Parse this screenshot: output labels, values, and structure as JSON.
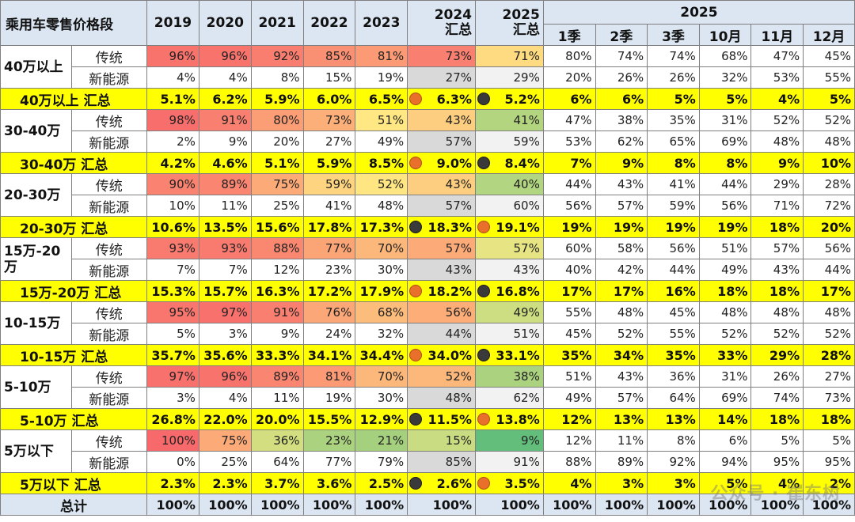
{
  "table_title": "乘用车零售价格段",
  "columns": {
    "years": [
      "2019",
      "2020",
      "2021",
      "2022",
      "2023"
    ],
    "summary": [
      {
        "year": "2024",
        "label": "汇总"
      },
      {
        "year": "2025",
        "label": "汇总"
      }
    ],
    "group_2025": "2025",
    "periods": [
      "1季",
      "2季",
      "3季",
      "10月",
      "11月",
      "12月"
    ]
  },
  "colors": {
    "header_bg": "#dce6f2",
    "summary_row_bg": "#ffff00",
    "dot_orange": "#e8702a",
    "dot_dark": "#3a3a3a",
    "col_2024_bg": "#d9d9d9",
    "col_2025_bg": "#f2f2f2"
  },
  "chart_data": {
    "type": "table",
    "segments": [
      {
        "name": "40万以上",
        "rows": [
          {
            "label": "传统",
            "values": [
              "96%",
              "96%",
              "92%",
              "85%",
              "81%",
              "73%",
              "71%",
              "80%",
              "74%",
              "74%",
              "68%",
              "47%",
              "45%"
            ]
          },
          {
            "label": "新能源",
            "values": [
              "4%",
              "4%",
              "8%",
              "15%",
              "19%",
              "27%",
              "29%",
              "20%",
              "26%",
              "26%",
              "32%",
              "53%",
              "55%"
            ]
          }
        ],
        "summary_label": "40万以上 汇总",
        "summary": [
          "5.1%",
          "6.2%",
          "5.9%",
          "6.0%",
          "6.5%",
          "6.3%",
          "5.2%",
          "6%",
          "6%",
          "5%",
          "5%",
          "4%",
          "5%"
        ],
        "dots": [
          "orange",
          "dark"
        ]
      },
      {
        "name": "30-40万",
        "rows": [
          {
            "label": "传统",
            "values": [
              "98%",
              "91%",
              "80%",
              "73%",
              "51%",
              "43%",
              "41%",
              "47%",
              "38%",
              "35%",
              "31%",
              "52%",
              "52%"
            ]
          },
          {
            "label": "新能源",
            "values": [
              "2%",
              "9%",
              "20%",
              "27%",
              "49%",
              "57%",
              "59%",
              "53%",
              "62%",
              "65%",
              "69%",
              "48%",
              "48%"
            ]
          }
        ],
        "summary_label": "30-40万 汇总",
        "summary": [
          "4.2%",
          "4.6%",
          "5.1%",
          "5.9%",
          "8.5%",
          "9.0%",
          "8.4%",
          "7%",
          "9%",
          "8%",
          "8%",
          "9%",
          "10%"
        ],
        "dots": [
          "orange",
          "dark"
        ]
      },
      {
        "name": "20-30万",
        "rows": [
          {
            "label": "传统",
            "values": [
              "90%",
              "89%",
              "75%",
              "59%",
              "52%",
              "43%",
              "40%",
              "44%",
              "43%",
              "41%",
              "44%",
              "29%",
              "28%"
            ]
          },
          {
            "label": "新能源",
            "values": [
              "10%",
              "11%",
              "25%",
              "41%",
              "48%",
              "57%",
              "60%",
              "56%",
              "57%",
              "59%",
              "56%",
              "71%",
              "72%"
            ]
          }
        ],
        "summary_label": "20-30万 汇总",
        "summary": [
          "10.6%",
          "13.5%",
          "15.6%",
          "17.8%",
          "17.3%",
          "18.3%",
          "19.1%",
          "19%",
          "19%",
          "19%",
          "19%",
          "18%",
          "20%"
        ],
        "dots": [
          "dark",
          "orange"
        ]
      },
      {
        "name": "15万-20万",
        "rows": [
          {
            "label": "传统",
            "values": [
              "93%",
              "93%",
              "88%",
              "77%",
              "70%",
              "57%",
              "57%",
              "60%",
              "58%",
              "56%",
              "51%",
              "57%",
              "56%"
            ]
          },
          {
            "label": "新能源",
            "values": [
              "7%",
              "7%",
              "12%",
              "23%",
              "30%",
              "43%",
              "43%",
              "40%",
              "42%",
              "44%",
              "49%",
              "43%",
              "44%"
            ]
          }
        ],
        "summary_label": "15万-20万 汇总",
        "summary": [
          "15.3%",
          "15.7%",
          "16.3%",
          "17.2%",
          "17.9%",
          "18.2%",
          "16.8%",
          "17%",
          "17%",
          "16%",
          "18%",
          "18%",
          "17%"
        ],
        "dots": [
          "orange",
          "dark"
        ]
      },
      {
        "name": "10-15万",
        "rows": [
          {
            "label": "传统",
            "values": [
              "95%",
              "97%",
              "91%",
              "76%",
              "68%",
              "56%",
              "49%",
              "55%",
              "48%",
              "45%",
              "48%",
              "48%",
              "48%"
            ]
          },
          {
            "label": "新能源",
            "values": [
              "5%",
              "3%",
              "9%",
              "24%",
              "32%",
              "44%",
              "51%",
              "45%",
              "52%",
              "55%",
              "52%",
              "52%",
              "52%"
            ]
          }
        ],
        "summary_label": "10-15万 汇总",
        "summary": [
          "35.7%",
          "35.6%",
          "33.3%",
          "34.1%",
          "34.4%",
          "34.0%",
          "33.1%",
          "35%",
          "34%",
          "35%",
          "33%",
          "29%",
          "28%"
        ],
        "dots": [
          "orange",
          "dark"
        ]
      },
      {
        "name": "5-10万",
        "rows": [
          {
            "label": "传统",
            "values": [
              "97%",
              "96%",
              "89%",
              "81%",
              "70%",
              "52%",
              "38%",
              "51%",
              "43%",
              "36%",
              "31%",
              "26%",
              "27%"
            ]
          },
          {
            "label": "新能源",
            "values": [
              "3%",
              "4%",
              "11%",
              "19%",
              "30%",
              "48%",
              "62%",
              "49%",
              "57%",
              "64%",
              "69%",
              "74%",
              "73%"
            ]
          }
        ],
        "summary_label": "5-10万 汇总",
        "summary": [
          "26.8%",
          "22.0%",
          "20.0%",
          "15.5%",
          "12.9%",
          "11.5%",
          "13.8%",
          "12%",
          "13%",
          "13%",
          "14%",
          "18%",
          "18%"
        ],
        "dots": [
          "dark",
          "orange"
        ]
      },
      {
        "name": "5万以下",
        "rows": [
          {
            "label": "传统",
            "values": [
              "100%",
              "75%",
              "36%",
              "23%",
              "21%",
              "15%",
              "9%",
              "12%",
              "11%",
              "8%",
              "6%",
              "5%",
              "5%"
            ]
          },
          {
            "label": "新能源",
            "values": [
              "0%",
              "25%",
              "64%",
              "77%",
              "79%",
              "85%",
              "91%",
              "88%",
              "89%",
              "92%",
              "94%",
              "95%",
              "95%"
            ]
          }
        ],
        "summary_label": "5万以下 汇总",
        "summary": [
          "2.3%",
          "2.3%",
          "3.7%",
          "3.6%",
          "2.5%",
          "2.6%",
          "3.5%",
          "4%",
          "3%",
          "3%",
          "5%",
          "4%",
          "2%"
        ],
        "dots": [
          "dark",
          "orange"
        ]
      }
    ],
    "total": {
      "label": "总计",
      "values": [
        "100%",
        "100%",
        "100%",
        "100%",
        "100%",
        "100%",
        "100%",
        "100%",
        "100%",
        "100%",
        "100%",
        "100%",
        "100%"
      ]
    }
  },
  "watermark": "公众号 · 崔东树"
}
